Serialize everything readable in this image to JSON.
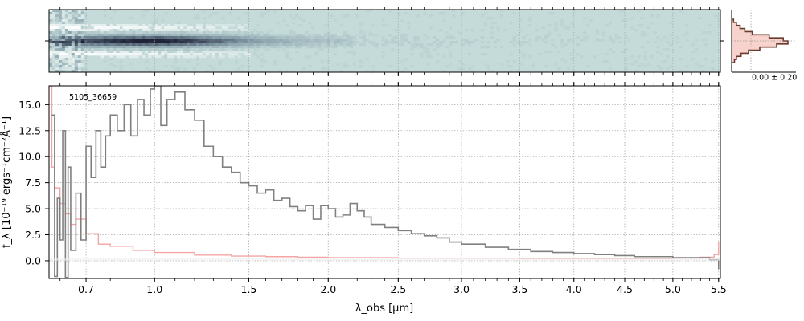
{
  "chart_data": [
    {
      "type": "heatmap",
      "panel": "2d-spectrum",
      "colormap": [
        "#ffffff",
        "#c5dbda",
        "#7f97a4",
        "#1e2338"
      ],
      "background": "#c5dbda",
      "grid": true
    },
    {
      "type": "line",
      "panel": "1d-spectrum",
      "annotation": "5105_36659",
      "xlabel": "λ_obs [µm]",
      "ylabel": "f_λ [10⁻¹⁹ ergs⁻¹cm⁻²Å⁻¹]",
      "x_scale": "sqrt",
      "xlim": [
        0.56,
        5.52
      ],
      "ylim": [
        -1.7,
        16.8
      ],
      "xticks": [
        "0.7",
        "1.0",
        "1.5",
        "2.0",
        "2.5",
        "3.0",
        "3.5",
        "4.0",
        "4.5",
        "5.0",
        "5.5"
      ],
      "yticks": [
        "0.0",
        "2.5",
        "5.0",
        "7.5",
        "10.0",
        "12.5",
        "15.0"
      ],
      "grid": true,
      "series": [
        {
          "role": "flux",
          "color": "#808080",
          "x": [
            0.57,
            0.58,
            0.59,
            0.6,
            0.61,
            0.62,
            0.63,
            0.64,
            0.66,
            0.68,
            0.7,
            0.72,
            0.74,
            0.76,
            0.78,
            0.8,
            0.83,
            0.86,
            0.89,
            0.92,
            0.95,
            0.98,
            1.0,
            1.03,
            1.06,
            1.1,
            1.15,
            1.2,
            1.25,
            1.3,
            1.35,
            1.4,
            1.45,
            1.5,
            1.55,
            1.6,
            1.65,
            1.7,
            1.75,
            1.8,
            1.85,
            1.9,
            1.95,
            2.0,
            2.05,
            2.1,
            2.15,
            2.2,
            2.25,
            2.3,
            2.4,
            2.5,
            2.6,
            2.7,
            2.8,
            2.9,
            3.0,
            3.2,
            3.4,
            3.6,
            3.8,
            4.0,
            4.2,
            4.4,
            4.6,
            4.8,
            5.0,
            5.2,
            5.4,
            5.5
          ],
          "y": [
            14.0,
            -1.5,
            6.0,
            2.0,
            12.5,
            -1.6,
            9.0,
            1.0,
            6.5,
            2.0,
            11.0,
            8.0,
            12.5,
            9.0,
            12.0,
            14.0,
            12.5,
            15.0,
            12.0,
            15.5,
            14.0,
            16.5,
            16.8,
            13.0,
            15.5,
            16.2,
            14.5,
            13.5,
            11.0,
            10.0,
            9.0,
            8.5,
            7.5,
            7.2,
            6.5,
            6.8,
            5.8,
            6.0,
            5.2,
            4.8,
            5.3,
            4.0,
            5.3,
            5.0,
            4.2,
            4.4,
            5.5,
            4.8,
            4.2,
            3.5,
            3.2,
            2.9,
            2.6,
            2.4,
            2.2,
            1.8,
            1.6,
            1.3,
            1.1,
            0.9,
            0.8,
            0.7,
            0.6,
            0.5,
            0.4,
            0.4,
            0.3,
            0.3,
            0.1,
            -0.8
          ]
        },
        {
          "role": "uncertainty",
          "color": "#f4a4a4",
          "x": [
            0.56,
            0.57,
            0.58,
            0.6,
            0.62,
            0.64,
            0.66,
            0.7,
            0.75,
            0.8,
            0.9,
            1.0,
            1.2,
            1.4,
            1.6,
            1.8,
            2.0,
            2.5,
            3.0,
            3.5,
            4.0,
            4.5,
            5.0,
            5.3,
            5.45,
            5.5
          ],
          "y": [
            16.8,
            9.0,
            7.0,
            5.5,
            4.5,
            3.5,
            4.0,
            2.6,
            1.6,
            1.4,
            1.0,
            0.8,
            0.55,
            0.45,
            0.4,
            0.35,
            0.3,
            0.25,
            0.25,
            0.2,
            0.2,
            0.2,
            0.25,
            0.35,
            0.6,
            1.8
          ]
        }
      ]
    },
    {
      "type": "histogram",
      "panel": "residual-histogram",
      "label": "0.00 ± 0.20"
    }
  ]
}
